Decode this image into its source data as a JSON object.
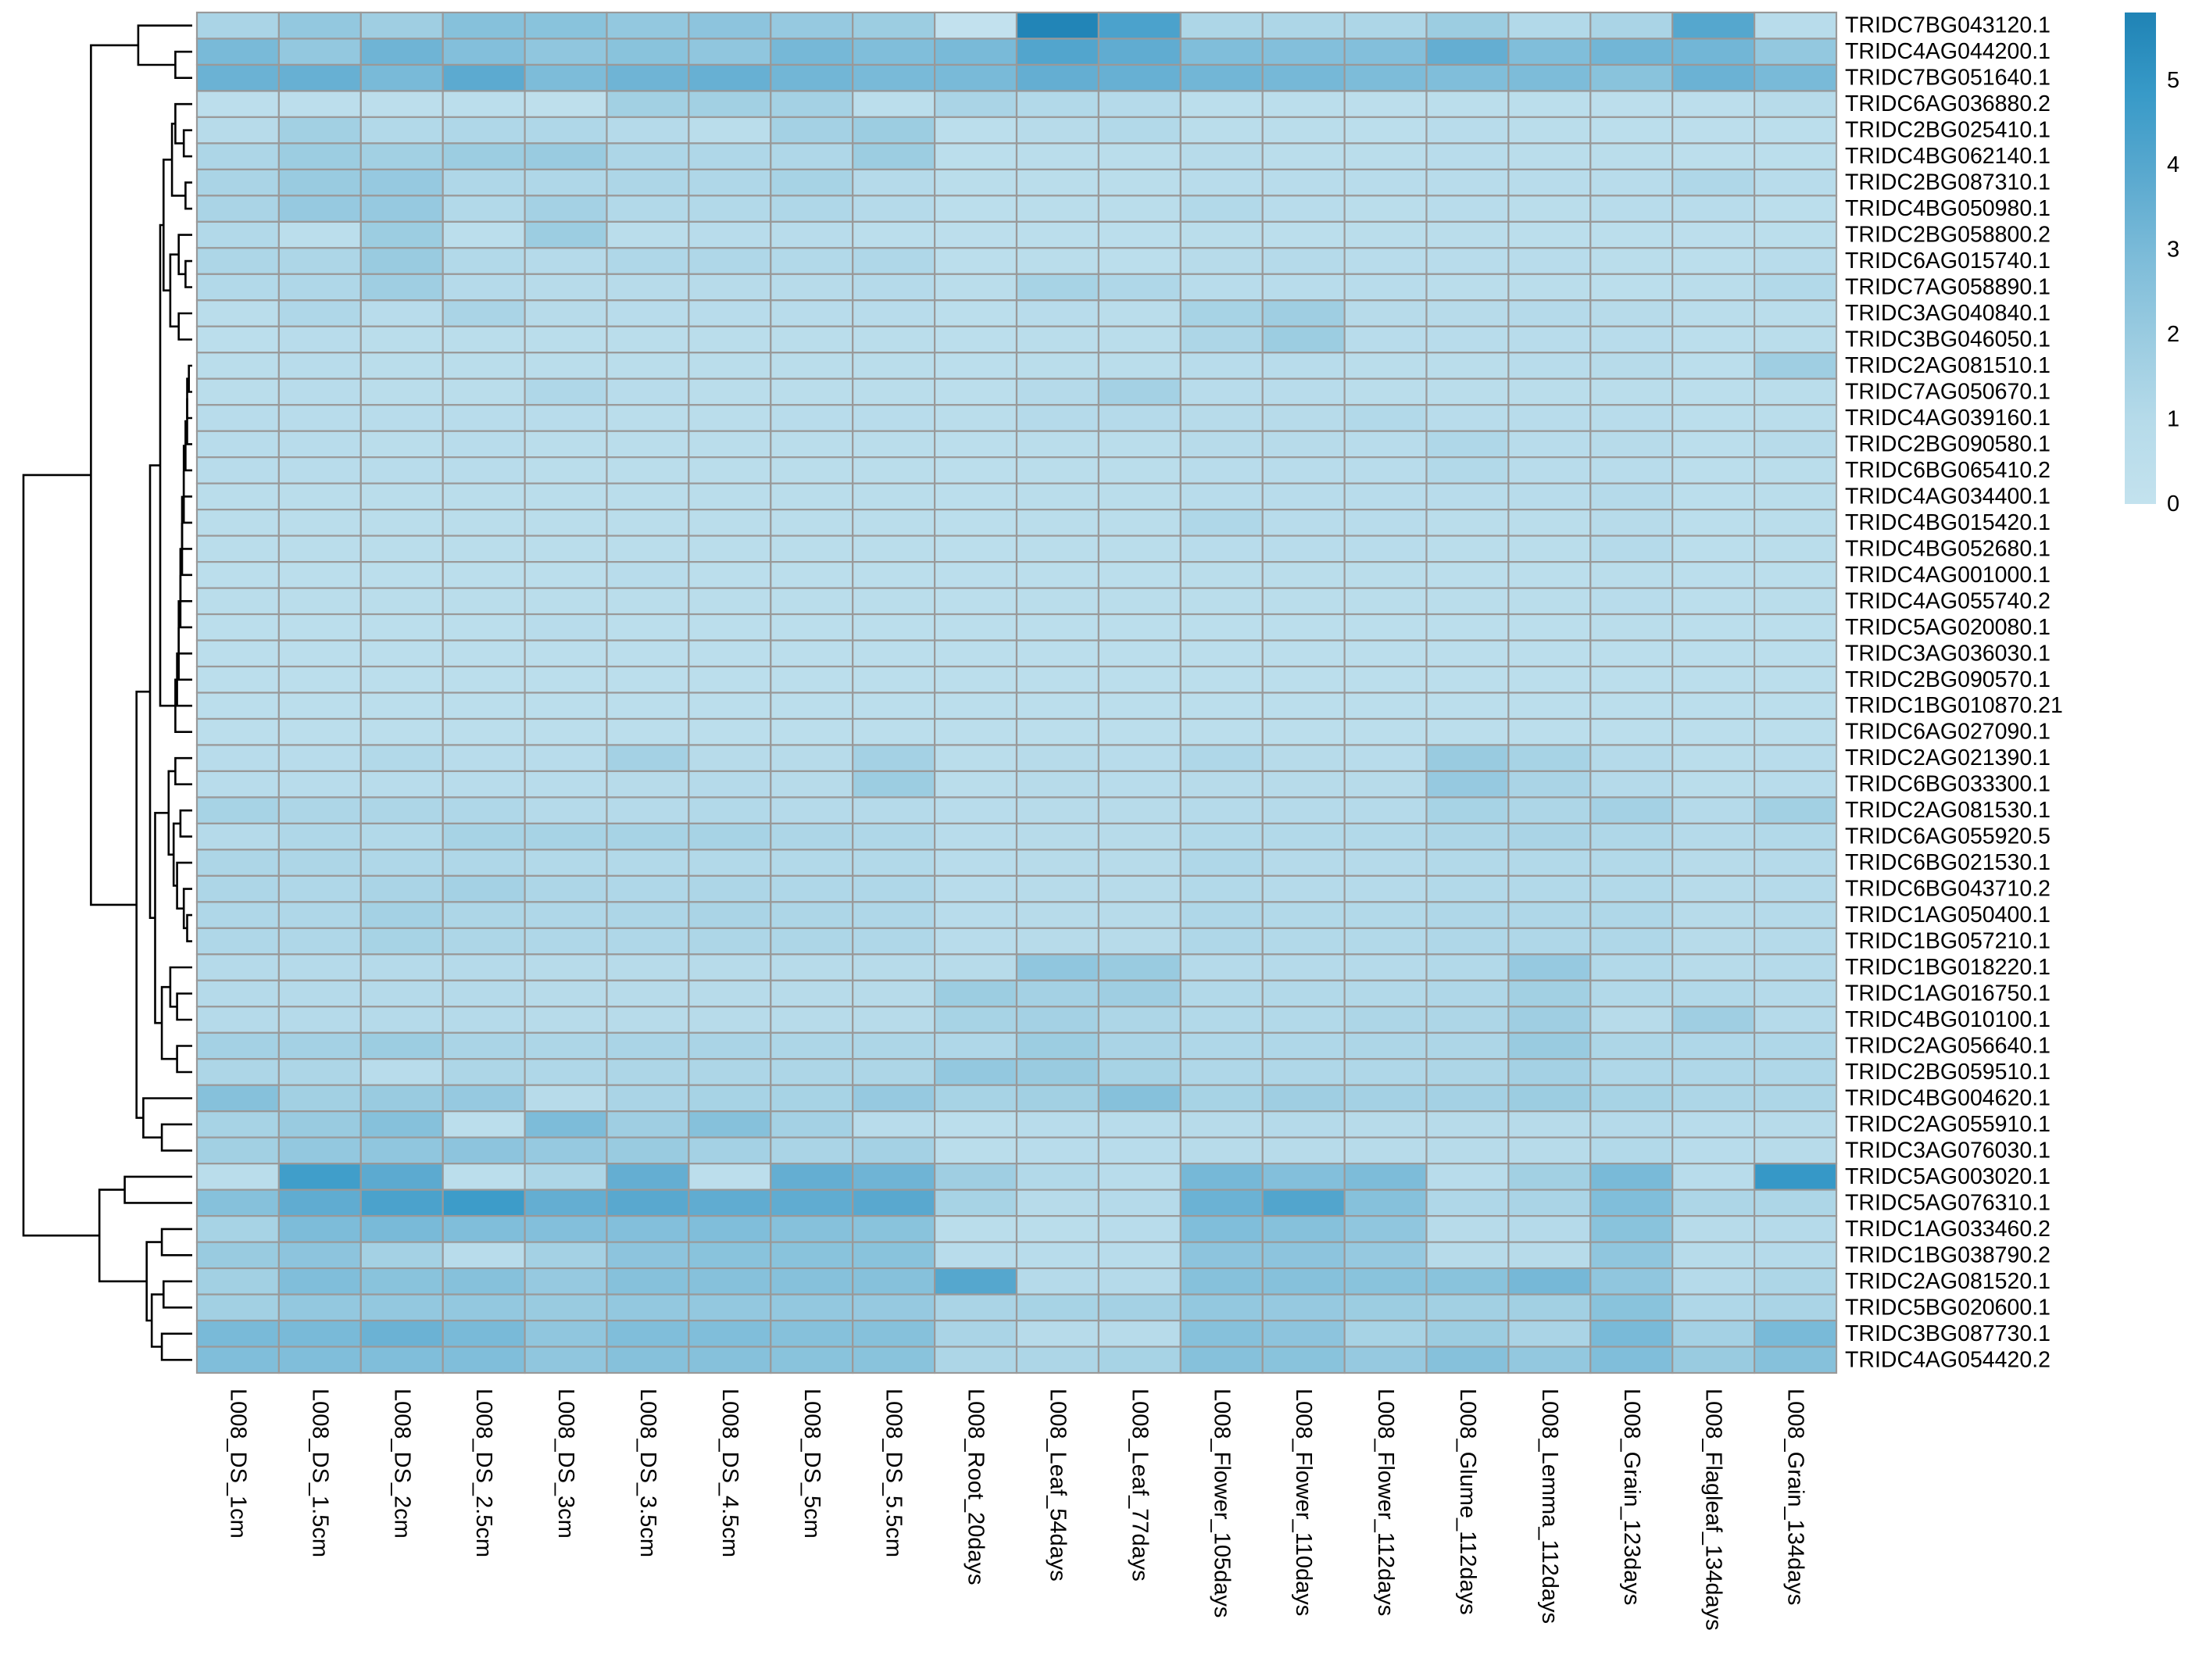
{
  "chart_data": {
    "type": "heatmap",
    "title": "",
    "xlabel": "",
    "ylabel": "",
    "columns": [
      "L008_DS_1cm",
      "L008_DS_1.5cm",
      "L008_DS_2cm",
      "L008_DS_2.5cm",
      "L008_DS_3cm",
      "L008_DS_3.5cm",
      "L008_DS_4.5cm",
      "L008_DS_5cm",
      "L008_DS_5.5cm",
      "L008_Root_20days",
      "L008_Leaf_54days",
      "L008_Leaf_77days",
      "L008_Flower_105days",
      "L008_Flower_110days",
      "L008_Flower_112days",
      "L008_Glume_112days",
      "L008_Lemma_112days",
      "L008_Grain_123days",
      "L008_Flagleaf_134days",
      "L008_Grain_134days"
    ],
    "rows": [
      "TRIDC7BG043120.1",
      "TRIDC4AG044200.1",
      "TRIDC7BG051640.1",
      "TRIDC6AG036880.2",
      "TRIDC2BG025410.1",
      "TRIDC4BG062140.1",
      "TRIDC2BG087310.1",
      "TRIDC4BG050980.1",
      "TRIDC2BG058800.2",
      "TRIDC6AG015740.1",
      "TRIDC7AG058890.1",
      "TRIDC3AG040840.1",
      "TRIDC3BG046050.1",
      "TRIDC2AG081510.1",
      "TRIDC7AG050670.1",
      "TRIDC4AG039160.1",
      "TRIDC2BG090580.1",
      "TRIDC6BG065410.2",
      "TRIDC4AG034400.1",
      "TRIDC4BG015420.1",
      "TRIDC4BG052680.1",
      "TRIDC4AG001000.1",
      "TRIDC4AG055740.2",
      "TRIDC5AG020080.1",
      "TRIDC3AG036030.1",
      "TRIDC2BG090570.1",
      "TRIDC1BG010870.21",
      "TRIDC6AG027090.1",
      "TRIDC2AG021390.1",
      "TRIDC6BG033300.1",
      "TRIDC2AG081530.1",
      "TRIDC6AG055920.5",
      "TRIDC6BG021530.1",
      "TRIDC6BG043710.2",
      "TRIDC1AG050400.1",
      "TRIDC1BG057210.1",
      "TRIDC1BG018220.1",
      "TRIDC1AG016750.1",
      "TRIDC4BG010100.1",
      "TRIDC2AG056640.1",
      "TRIDC2BG059510.1",
      "TRIDC4BG004620.1",
      "TRIDC2AG055910.1",
      "TRIDC3AG076030.1",
      "TRIDC5AG003020.1",
      "TRIDC5AG076310.1",
      "TRIDC1AG033460.2",
      "TRIDC1BG038790.2",
      "TRIDC2AG081520.1",
      "TRIDC5BG020600.1",
      "TRIDC3BG087730.1",
      "TRIDC4AG054420.2"
    ],
    "values": [
      [
        1.4,
        2.2,
        1.8,
        2.6,
        2.5,
        2.2,
        2.4,
        2.1,
        1.9,
        0.1,
        5.7,
        4.3,
        1.3,
        1.3,
        1.3,
        1.9,
        1.1,
        1.4,
        4.0,
        0.8
      ],
      [
        3.0,
        2.2,
        3.3,
        2.7,
        2.3,
        2.5,
        2.3,
        3.1,
        2.8,
        3.0,
        4.1,
        3.7,
        2.8,
        2.7,
        2.7,
        3.6,
        2.8,
        3.2,
        3.2,
        2.2
      ],
      [
        3.4,
        3.5,
        3.0,
        3.8,
        2.9,
        3.3,
        3.5,
        3.2,
        3.0,
        3.0,
        3.6,
        3.5,
        3.2,
        3.1,
        2.9,
        2.8,
        2.9,
        2.5,
        3.4,
        3.0
      ],
      [
        0.5,
        0.5,
        0.5,
        0.6,
        0.4,
        1.7,
        1.7,
        1.6,
        0.6,
        1.4,
        1.1,
        1.0,
        0.6,
        0.6,
        0.5,
        0.6,
        0.6,
        0.5,
        0.5,
        0.9
      ],
      [
        0.9,
        1.7,
        1.1,
        1.2,
        1.2,
        1.0,
        0.7,
        1.6,
        1.9,
        0.6,
        0.9,
        1.1,
        0.7,
        0.7,
        0.6,
        0.8,
        0.7,
        0.6,
        0.5,
        0.6
      ],
      [
        1.3,
        1.9,
        1.7,
        1.9,
        2.0,
        1.3,
        1.2,
        1.2,
        1.9,
        0.6,
        0.7,
        0.7,
        0.9,
        0.7,
        0.7,
        0.8,
        0.7,
        0.7,
        0.5,
        0.6
      ],
      [
        1.4,
        2.0,
        2.1,
        1.2,
        1.2,
        1.3,
        1.2,
        1.5,
        1.0,
        0.7,
        0.7,
        0.7,
        0.8,
        0.8,
        0.8,
        0.8,
        0.8,
        0.8,
        1.2,
        0.8
      ],
      [
        1.4,
        2.1,
        2.1,
        1.1,
        1.6,
        1.1,
        1.1,
        1.2,
        1.0,
        0.6,
        0.7,
        0.7,
        1.1,
        0.8,
        0.7,
        0.8,
        0.7,
        0.8,
        0.8,
        0.6
      ],
      [
        1.1,
        0.6,
        1.9,
        0.6,
        1.9,
        0.7,
        0.8,
        0.8,
        0.6,
        0.5,
        0.6,
        0.6,
        0.7,
        0.6,
        0.7,
        0.7,
        0.6,
        0.6,
        0.5,
        0.6
      ],
      [
        1.3,
        1.3,
        2.0,
        1.1,
        1.0,
        1.2,
        1.2,
        1.1,
        1.2,
        0.6,
        0.7,
        0.6,
        0.9,
        1.0,
        0.8,
        0.8,
        0.8,
        0.7,
        0.6,
        0.8
      ],
      [
        1.1,
        1.2,
        1.8,
        1.0,
        0.9,
        0.9,
        0.9,
        0.9,
        1.0,
        0.7,
        1.5,
        1.2,
        0.8,
        0.8,
        0.8,
        0.7,
        0.7,
        0.6,
        0.7,
        1.1
      ],
      [
        0.7,
        1.2,
        0.8,
        1.4,
        0.9,
        0.8,
        0.8,
        0.8,
        0.8,
        0.6,
        0.8,
        0.7,
        1.5,
        1.8,
        0.9,
        0.9,
        1.0,
        0.9,
        0.7,
        0.7
      ],
      [
        0.6,
        0.8,
        0.7,
        0.7,
        0.7,
        0.7,
        0.7,
        0.7,
        0.7,
        0.6,
        0.7,
        0.7,
        1.3,
        1.9,
        0.8,
        0.8,
        0.8,
        0.8,
        0.6,
        0.7
      ],
      [
        0.7,
        0.8,
        0.7,
        0.7,
        0.7,
        0.7,
        0.7,
        0.7,
        0.7,
        0.6,
        0.7,
        0.7,
        0.8,
        0.8,
        0.7,
        0.7,
        0.8,
        0.9,
        0.6,
        1.8
      ],
      [
        0.7,
        0.8,
        0.7,
        0.7,
        1.2,
        0.8,
        0.7,
        0.7,
        0.7,
        0.6,
        1.0,
        1.6,
        0.8,
        0.8,
        0.7,
        0.7,
        0.7,
        0.7,
        0.6,
        0.7
      ],
      [
        0.8,
        0.8,
        0.8,
        0.8,
        0.8,
        0.7,
        0.7,
        0.8,
        0.8,
        0.7,
        1.0,
        1.0,
        0.9,
        0.9,
        1.1,
        0.8,
        0.8,
        0.8,
        0.6,
        0.7
      ],
      [
        0.8,
        0.8,
        0.7,
        0.8,
        0.7,
        0.7,
        0.7,
        0.7,
        0.7,
        0.6,
        0.7,
        0.7,
        0.9,
        0.9,
        0.8,
        1.2,
        0.8,
        0.9,
        0.6,
        0.9
      ],
      [
        0.8,
        0.8,
        0.8,
        0.8,
        0.7,
        0.7,
        0.7,
        0.7,
        0.7,
        0.6,
        0.7,
        0.7,
        0.8,
        0.8,
        0.8,
        1.1,
        0.8,
        0.8,
        0.6,
        0.7
      ],
      [
        0.7,
        0.7,
        0.7,
        0.7,
        0.7,
        0.7,
        0.7,
        0.7,
        0.7,
        0.6,
        0.7,
        0.7,
        0.8,
        0.8,
        0.8,
        0.8,
        0.8,
        1.0,
        0.6,
        0.7
      ],
      [
        0.7,
        0.7,
        0.7,
        0.7,
        0.7,
        0.7,
        0.7,
        0.7,
        0.7,
        0.6,
        0.7,
        0.7,
        1.2,
        0.8,
        0.8,
        0.7,
        0.7,
        0.9,
        0.6,
        0.7
      ],
      [
        0.7,
        0.7,
        0.7,
        0.7,
        0.7,
        0.7,
        0.7,
        0.7,
        0.7,
        0.6,
        0.7,
        0.7,
        0.8,
        0.8,
        0.8,
        0.7,
        0.7,
        1.0,
        0.6,
        0.7
      ],
      [
        0.6,
        0.6,
        0.6,
        0.6,
        0.6,
        0.8,
        0.6,
        0.6,
        0.6,
        0.6,
        0.6,
        0.6,
        0.7,
        0.7,
        0.7,
        0.6,
        0.6,
        0.7,
        0.6,
        0.6
      ],
      [
        0.7,
        0.7,
        0.7,
        0.7,
        0.7,
        0.7,
        0.7,
        0.7,
        0.7,
        0.6,
        0.7,
        0.7,
        0.7,
        0.7,
        0.7,
        0.7,
        0.7,
        0.8,
        0.6,
        0.7
      ],
      [
        0.6,
        0.6,
        0.6,
        0.6,
        0.8,
        0.6,
        0.6,
        0.6,
        0.6,
        0.6,
        0.6,
        0.6,
        0.6,
        0.6,
        0.6,
        0.6,
        0.6,
        0.7,
        0.6,
        0.6
      ],
      [
        0.6,
        0.6,
        0.6,
        0.6,
        0.6,
        0.6,
        0.6,
        0.6,
        0.6,
        0.6,
        0.6,
        0.6,
        0.6,
        0.6,
        0.6,
        0.6,
        0.6,
        0.6,
        0.6,
        0.6
      ],
      [
        0.6,
        0.6,
        0.6,
        0.6,
        0.6,
        0.6,
        0.6,
        0.6,
        0.6,
        0.6,
        0.6,
        0.6,
        0.6,
        0.6,
        0.6,
        0.6,
        0.6,
        0.6,
        0.6,
        0.6
      ],
      [
        0.6,
        0.6,
        0.6,
        0.6,
        0.6,
        0.6,
        0.6,
        0.6,
        0.6,
        0.6,
        0.6,
        0.6,
        0.6,
        0.6,
        0.6,
        0.6,
        0.6,
        0.6,
        0.6,
        0.6
      ],
      [
        0.6,
        0.6,
        0.6,
        0.6,
        0.6,
        0.6,
        0.6,
        0.6,
        0.6,
        0.6,
        0.6,
        0.6,
        0.6,
        0.6,
        0.6,
        0.6,
        0.6,
        0.6,
        0.6,
        0.6
      ],
      [
        0.8,
        0.8,
        1.1,
        0.8,
        0.8,
        1.6,
        0.9,
        0.9,
        1.6,
        0.7,
        0.9,
        0.8,
        1.2,
        0.9,
        0.8,
        2.0,
        1.5,
        1.0,
        0.7,
        0.8
      ],
      [
        0.8,
        0.8,
        0.8,
        0.8,
        0.8,
        0.9,
        1.0,
        0.9,
        1.9,
        0.7,
        0.9,
        0.8,
        0.9,
        0.9,
        0.9,
        2.1,
        1.4,
        1.0,
        0.7,
        0.8
      ],
      [
        1.5,
        1.3,
        1.3,
        1.2,
        1.0,
        1.0,
        1.1,
        1.0,
        1.0,
        0.8,
        0.9,
        0.9,
        1.0,
        1.0,
        1.0,
        1.5,
        1.3,
        1.6,
        1.0,
        1.7
      ],
      [
        1.0,
        1.2,
        1.1,
        1.5,
        1.5,
        1.5,
        1.5,
        1.3,
        1.2,
        0.8,
        0.9,
        0.9,
        1.1,
        1.1,
        1.1,
        1.3,
        1.4,
        1.2,
        1.0,
        1.1
      ],
      [
        1.3,
        1.3,
        1.2,
        1.2,
        1.1,
        1.1,
        1.1,
        1.1,
        1.1,
        0.8,
        0.9,
        0.9,
        1.2,
        1.0,
        1.0,
        1.1,
        1.1,
        1.1,
        0.9,
        1.0
      ],
      [
        1.3,
        1.2,
        1.4,
        1.6,
        1.3,
        1.2,
        1.3,
        1.2,
        1.2,
        0.8,
        0.9,
        0.9,
        1.1,
        1.0,
        1.0,
        1.1,
        1.1,
        1.1,
        0.9,
        1.0
      ],
      [
        1.2,
        1.2,
        1.6,
        1.3,
        1.2,
        1.3,
        1.4,
        1.3,
        1.2,
        0.8,
        0.9,
        0.9,
        1.2,
        1.1,
        1.1,
        1.2,
        1.2,
        1.2,
        0.9,
        1.0
      ],
      [
        1.2,
        1.2,
        1.5,
        1.3,
        1.2,
        1.2,
        1.3,
        1.3,
        1.2,
        0.8,
        0.9,
        0.9,
        1.2,
        1.1,
        1.1,
        1.2,
        1.2,
        1.2,
        0.9,
        1.0
      ],
      [
        1.0,
        1.0,
        1.0,
        1.0,
        0.9,
        0.9,
        0.9,
        0.9,
        0.9,
        0.9,
        2.3,
        2.0,
        1.0,
        1.0,
        1.0,
        1.1,
        2.1,
        1.1,
        0.9,
        1.0
      ],
      [
        1.0,
        1.0,
        1.0,
        1.0,
        0.9,
        0.9,
        0.9,
        0.9,
        0.9,
        1.9,
        1.6,
        1.8,
        1.1,
        1.1,
        1.1,
        1.2,
        1.7,
        1.1,
        1.1,
        1.0
      ],
      [
        1.0,
        1.0,
        1.0,
        1.0,
        0.9,
        0.9,
        0.9,
        0.9,
        0.9,
        1.5,
        1.6,
        1.3,
        1.1,
        1.1,
        1.3,
        1.3,
        1.8,
        0.9,
        1.8,
        1.0
      ],
      [
        1.6,
        1.6,
        1.9,
        1.4,
        1.3,
        1.4,
        1.4,
        1.3,
        1.3,
        1.2,
        1.9,
        1.4,
        1.2,
        1.2,
        1.3,
        1.3,
        2.0,
        1.3,
        1.2,
        1.2
      ],
      [
        1.3,
        1.3,
        0.8,
        1.3,
        1.2,
        1.3,
        1.3,
        1.3,
        1.3,
        2.2,
        2.0,
        1.5,
        1.2,
        1.2,
        1.2,
        1.3,
        1.6,
        1.2,
        1.2,
        1.2
      ],
      [
        2.6,
        1.7,
        2.0,
        2.1,
        0.9,
        1.4,
        1.5,
        1.5,
        2.1,
        1.5,
        1.7,
        2.6,
        1.5,
        1.8,
        1.6,
        1.6,
        1.9,
        1.5,
        1.3,
        1.3
      ],
      [
        1.5,
        2.0,
        2.6,
        0.6,
        2.9,
        1.8,
        2.6,
        1.6,
        0.8,
        0.6,
        0.8,
        0.8,
        0.9,
        1.0,
        0.9,
        0.9,
        0.9,
        1.0,
        0.8,
        0.9
      ],
      [
        1.7,
        2.2,
        2.3,
        2.4,
        2.1,
        2.0,
        1.6,
        1.4,
        1.6,
        0.7,
        0.8,
        0.8,
        0.9,
        0.9,
        0.9,
        0.9,
        0.9,
        1.1,
        0.8,
        0.9
      ],
      [
        0.7,
        4.6,
        3.8,
        0.6,
        1.3,
        3.6,
        0.5,
        3.6,
        3.3,
        1.8,
        1.1,
        0.8,
        3.1,
        2.7,
        2.9,
        0.8,
        1.7,
        3.0,
        0.8,
        4.9
      ],
      [
        2.6,
        3.7,
        4.3,
        4.7,
        3.6,
        3.9,
        3.7,
        3.7,
        3.9,
        1.5,
        0.9,
        1.0,
        3.4,
        4.1,
        2.6,
        1.2,
        1.4,
        2.8,
        1.3,
        1.3
      ],
      [
        1.5,
        2.9,
        3.0,
        2.8,
        2.7,
        2.7,
        2.8,
        2.6,
        2.5,
        0.7,
        0.7,
        0.8,
        2.8,
        2.6,
        2.3,
        0.9,
        1.0,
        2.5,
        0.9,
        1.0
      ],
      [
        2.0,
        2.4,
        1.6,
        0.8,
        1.6,
        2.4,
        2.5,
        2.5,
        2.5,
        0.8,
        0.8,
        0.8,
        2.4,
        2.4,
        2.1,
        0.9,
        0.9,
        2.3,
        0.9,
        1.0
      ],
      [
        1.7,
        2.8,
        2.5,
        2.6,
        2.1,
        2.6,
        2.6,
        2.6,
        2.6,
        4.0,
        1.0,
        1.0,
        2.6,
        2.6,
        2.5,
        2.5,
        3.1,
        2.3,
        1.0,
        1.3
      ],
      [
        1.7,
        2.2,
        2.2,
        2.2,
        2.0,
        2.2,
        2.2,
        2.2,
        2.1,
        1.4,
        1.5,
        1.6,
        2.2,
        2.1,
        1.9,
        1.7,
        1.7,
        2.5,
        1.2,
        1.4
      ],
      [
        3.0,
        3.0,
        3.4,
        3.0,
        2.3,
        2.8,
        2.8,
        2.6,
        2.6,
        1.4,
        0.9,
        0.9,
        2.6,
        2.4,
        1.5,
        1.9,
        1.4,
        3.0,
        1.6,
        3.0
      ],
      [
        2.8,
        2.8,
        2.8,
        2.8,
        2.3,
        2.6,
        2.6,
        2.5,
        2.5,
        1.3,
        1.3,
        1.5,
        2.6,
        2.5,
        2.1,
        2.6,
        2.2,
        2.8,
        2.0,
        2.6
      ]
    ],
    "colorscale": [
      "#c3e2ee",
      "#b6dbea",
      "#9bcce1",
      "#7dbcd9",
      "#5aa9cf",
      "#389ac8",
      "#1f83b5"
    ],
    "cell_border_color": "#999999",
    "legend": {
      "placement": "top-right",
      "min": 0,
      "max": 5.8,
      "ticks": [
        0,
        1,
        2,
        3,
        4,
        5
      ]
    },
    "dendrogram": {
      "side": "left",
      "color": "#000000",
      "note": "row clustering tree"
    }
  }
}
